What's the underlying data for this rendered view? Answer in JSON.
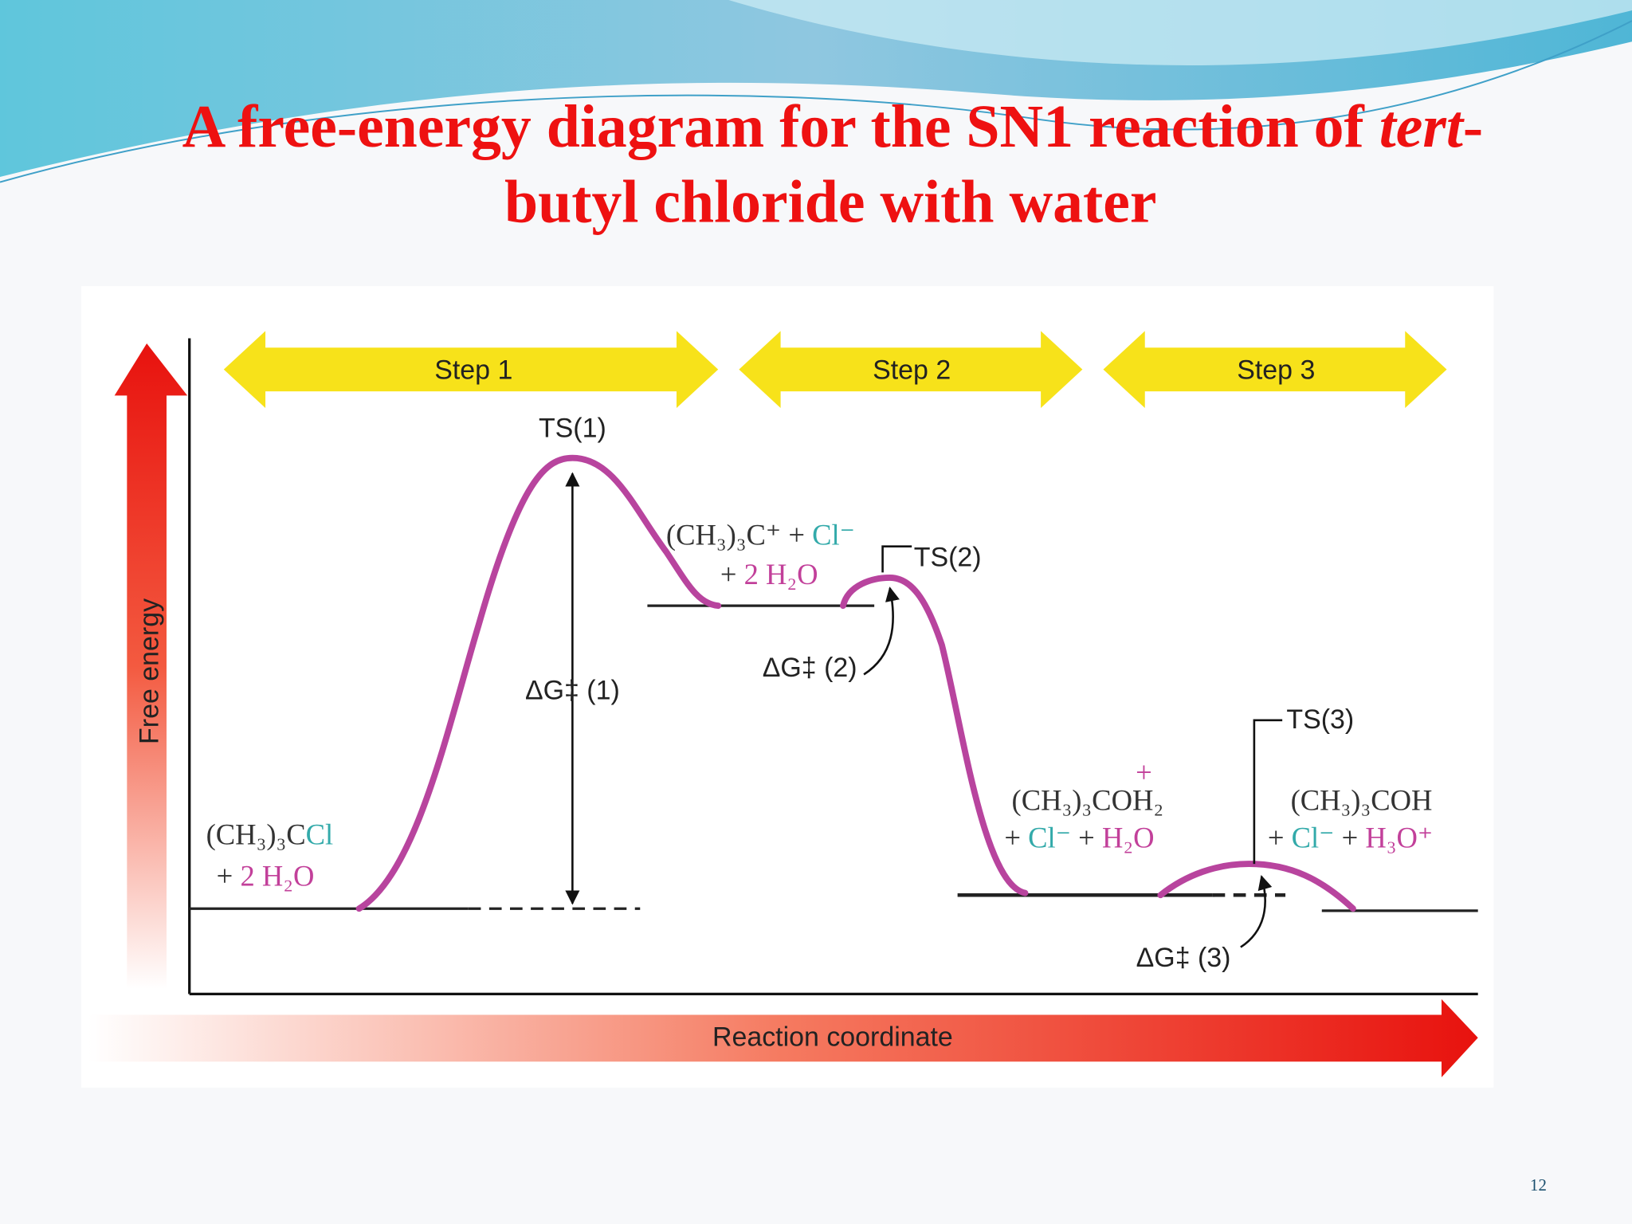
{
  "header": {
    "title_parts": [
      "A free-energy diagram for the SN1 reaction of ",
      "tert",
      "-"
    ],
    "title_line2": "butyl chloride with water"
  },
  "steps": [
    "Step 1",
    "Step 2",
    "Step 3"
  ],
  "axes": {
    "y_label": "Free energy",
    "x_label": "Reaction coordinate"
  },
  "transition_states": [
    "TS(1)",
    "TS(2)",
    "TS(3)"
  ],
  "activation_labels": [
    "ΔG‡ (1)",
    "ΔG‡ (2)",
    "ΔG‡ (3)"
  ],
  "species": [
    {
      "line1": [
        "(CH₃)₃C",
        "Cl"
      ],
      "line2": [
        "+ ",
        "2 H₂O"
      ]
    },
    {
      "line1": [
        "(CH₃)₃C⁺ + ",
        "Cl⁻"
      ],
      "line2": [
        "+ ",
        "2 H₂O"
      ]
    },
    {
      "charge": "+",
      "line1": [
        "(CH₃)₃COH₂"
      ],
      "line2": [
        "+ ",
        "Cl⁻",
        " + ",
        "H₂O"
      ]
    },
    {
      "line1": [
        "(CH₃)₃COH"
      ],
      "line2": [
        "+ ",
        "Cl⁻",
        " + ",
        "H₃O⁺"
      ]
    }
  ],
  "page_number": "12"
}
